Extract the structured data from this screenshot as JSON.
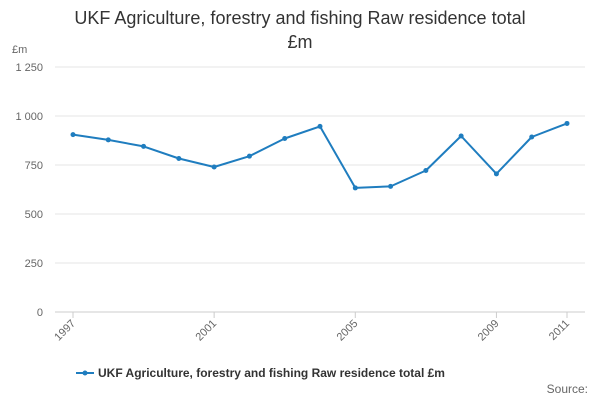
{
  "chart_data": {
    "type": "line",
    "title_line1": "UKF Agriculture, forestry and fishing Raw residence total",
    "title_line2": "£m",
    "ylabel": "£m",
    "ylim": [
      0,
      1250
    ],
    "yticks": [
      "0",
      "250",
      "500",
      "750",
      "1 000",
      "1 250"
    ],
    "ytick_values": [
      0,
      250,
      500,
      750,
      1000,
      1250
    ],
    "xlim": [
      1997,
      2011
    ],
    "xticks": [
      "1997",
      "2001",
      "2005",
      "2009",
      "2011"
    ],
    "xtick_values": [
      1997,
      2001,
      2005,
      2009,
      2011
    ],
    "series": [
      {
        "name": "UKF Agriculture, forestry and fishing Raw residence total £m",
        "color": "#1f7dbf",
        "x": [
          1997,
          1998,
          1999,
          2000,
          2001,
          2002,
          2003,
          2004,
          2005,
          2006,
          2007,
          2008,
          2009,
          2010,
          2011
        ],
        "values": [
          905,
          878,
          845,
          783,
          740,
          795,
          885,
          947,
          633,
          641,
          722,
          898,
          705,
          893,
          962
        ]
      }
    ],
    "source": "Source:"
  }
}
